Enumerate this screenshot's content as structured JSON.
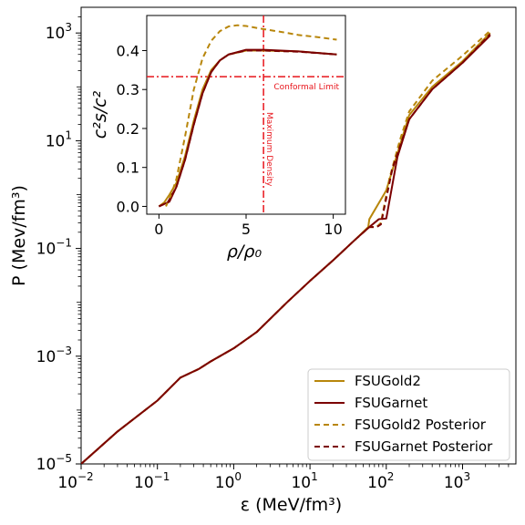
{
  "chart_data": [
    {
      "type": "line",
      "title": "",
      "xlabel": "ε (MeV/fm³)",
      "ylabel": "P (Mev/fm³)",
      "xscale": "log",
      "yscale": "log",
      "xlim": [
        0.01,
        5000
      ],
      "ylim": [
        1e-05,
        3000
      ],
      "x_ticks": [
        {
          "value": 0.01,
          "base": "10",
          "exp": "−2"
        },
        {
          "value": 0.1,
          "base": "10",
          "exp": "−1"
        },
        {
          "value": 1,
          "base": "10",
          "exp": "0"
        },
        {
          "value": 10,
          "base": "10",
          "exp": "1"
        },
        {
          "value": 100,
          "base": "10",
          "exp": "2"
        },
        {
          "value": 1000,
          "base": "10",
          "exp": "3"
        }
      ],
      "y_ticks": [
        {
          "value": 1e-05,
          "base": "10",
          "exp": "−5"
        },
        {
          "value": 0.001,
          "base": "10",
          "exp": "−3"
        },
        {
          "value": 0.1,
          "base": "10",
          "exp": "−1"
        },
        {
          "value": 10,
          "base": "10",
          "exp": "1"
        },
        {
          "value": 1000,
          "base": "10",
          "exp": "3"
        }
      ],
      "legend_position": "lower-right",
      "series": [
        {
          "name": "FSUGold2",
          "color": "#b8860b",
          "style": "solid",
          "points": [
            [
              0.01,
              1e-05
            ],
            [
              0.03,
              4e-05
            ],
            [
              0.1,
              0.00015
            ],
            [
              0.2,
              0.0004
            ],
            [
              0.35,
              0.00058
            ],
            [
              0.5,
              0.0008
            ],
            [
              1,
              0.0014
            ],
            [
              2,
              0.0028
            ],
            [
              5,
              0.01
            ],
            [
              10,
              0.025
            ],
            [
              20,
              0.06
            ],
            [
              40,
              0.15
            ],
            [
              58,
              0.25
            ],
            [
              60,
              0.35
            ],
            [
              100,
              1.2
            ],
            [
              150,
              8
            ],
            [
              200,
              30
            ],
            [
              400,
              100
            ],
            [
              1000,
              300
            ],
            [
              2300,
              1000
            ]
          ]
        },
        {
          "name": "FSUGarnet",
          "color": "#7b0000",
          "style": "solid",
          "points": [
            [
              0.01,
              1e-05
            ],
            [
              0.03,
              4e-05
            ],
            [
              0.1,
              0.00015
            ],
            [
              0.2,
              0.0004
            ],
            [
              0.35,
              0.00058
            ],
            [
              0.5,
              0.0008
            ],
            [
              1,
              0.0014
            ],
            [
              2,
              0.0028
            ],
            [
              5,
              0.01
            ],
            [
              10,
              0.025
            ],
            [
              20,
              0.06
            ],
            [
              40,
              0.15
            ],
            [
              60,
              0.25
            ],
            [
              80,
              0.35
            ],
            [
              100,
              0.36
            ],
            [
              140,
              5
            ],
            [
              200,
              25
            ],
            [
              400,
              90
            ],
            [
              1000,
              280
            ],
            [
              2300,
              900
            ]
          ]
        },
        {
          "name": "FSUGold2 Posterior",
          "color": "#b8860b",
          "style": "dashed",
          "points": [
            [
              0.01,
              1e-05
            ],
            [
              0.03,
              4e-05
            ],
            [
              0.1,
              0.00015
            ],
            [
              0.2,
              0.0004
            ],
            [
              0.35,
              0.00058
            ],
            [
              0.5,
              0.0008
            ],
            [
              1,
              0.0014
            ],
            [
              2,
              0.0028
            ],
            [
              5,
              0.01
            ],
            [
              10,
              0.025
            ],
            [
              20,
              0.06
            ],
            [
              40,
              0.15
            ],
            [
              60,
              0.25
            ],
            [
              75,
              0.25
            ],
            [
              85,
              0.3
            ],
            [
              110,
              2
            ],
            [
              150,
              10
            ],
            [
              200,
              35
            ],
            [
              400,
              130
            ],
            [
              1000,
              380
            ],
            [
              2300,
              1100
            ]
          ]
        },
        {
          "name": "FSUGarnet Posterior",
          "color": "#7b0000",
          "style": "dashed",
          "points": [
            [
              0.01,
              1e-05
            ],
            [
              0.03,
              4e-05
            ],
            [
              0.1,
              0.00015
            ],
            [
              0.2,
              0.0004
            ],
            [
              0.35,
              0.00058
            ],
            [
              0.5,
              0.0008
            ],
            [
              1,
              0.0014
            ],
            [
              2,
              0.0028
            ],
            [
              5,
              0.01
            ],
            [
              10,
              0.025
            ],
            [
              20,
              0.06
            ],
            [
              40,
              0.15
            ],
            [
              60,
              0.25
            ],
            [
              75,
              0.25
            ],
            [
              85,
              0.28
            ],
            [
              120,
              3
            ],
            [
              200,
              25
            ],
            [
              400,
              90
            ],
            [
              1000,
              280
            ],
            [
              2300,
              950
            ]
          ]
        }
      ]
    },
    {
      "type": "line",
      "title": "",
      "xlabel": "ρ/ρ₀",
      "ylabel": "c²s/c²",
      "xlim": [
        -0.7,
        10.7
      ],
      "ylim": [
        -0.02,
        0.49
      ],
      "x_ticks": [
        "0",
        "5",
        "10"
      ],
      "x_tick_values": [
        0,
        5,
        10
      ],
      "y_ticks": [
        "0.0",
        "0.1",
        "0.2",
        "0.3",
        "0.4"
      ],
      "y_tick_values": [
        0,
        0.1,
        0.2,
        0.3,
        0.4
      ],
      "reference_lines": [
        {
          "orientation": "horizontal",
          "value": 0.333,
          "label": "Conformal Limit"
        },
        {
          "orientation": "vertical",
          "value": 6.0,
          "label": "Maximum Density"
        }
      ],
      "series": [
        {
          "name": "FSUGold2",
          "color": "#b8860b",
          "style": "solid",
          "points": [
            [
              0,
              0
            ],
            [
              0.3,
              0.01
            ],
            [
              0.6,
              0.03
            ],
            [
              1,
              0.06
            ],
            [
              1.5,
              0.13
            ],
            [
              2,
              0.22
            ],
            [
              2.5,
              0.3
            ],
            [
              3,
              0.35
            ],
            [
              3.5,
              0.375
            ],
            [
              4,
              0.39
            ],
            [
              5,
              0.4
            ],
            [
              6,
              0.4
            ],
            [
              8,
              0.398
            ],
            [
              10.2,
              0.39
            ]
          ]
        },
        {
          "name": "FSUGarnet",
          "color": "#7b0000",
          "style": "solid",
          "points": [
            [
              0,
              0
            ],
            [
              0.3,
              0.006
            ],
            [
              0.6,
              0.012
            ],
            [
              1,
              0.05
            ],
            [
              1.5,
              0.12
            ],
            [
              2,
              0.21
            ],
            [
              2.5,
              0.29
            ],
            [
              3,
              0.345
            ],
            [
              3.5,
              0.375
            ],
            [
              4,
              0.39
            ],
            [
              5,
              0.402
            ],
            [
              6,
              0.402
            ],
            [
              8,
              0.398
            ],
            [
              10.2,
              0.39
            ]
          ]
        },
        {
          "name": "FSUGold2 Posterior",
          "color": "#b8860b",
          "style": "dashed",
          "points": [
            [
              0.4,
              0
            ],
            [
              0.7,
              0.03
            ],
            [
              1,
              0.07
            ],
            [
              1.5,
              0.18
            ],
            [
              2,
              0.3
            ],
            [
              2.5,
              0.38
            ],
            [
              3,
              0.425
            ],
            [
              3.5,
              0.45
            ],
            [
              4,
              0.462
            ],
            [
              4.5,
              0.465
            ],
            [
              5,
              0.463
            ],
            [
              6,
              0.455
            ],
            [
              7,
              0.448
            ],
            [
              8,
              0.44
            ],
            [
              9,
              0.435
            ],
            [
              10.2,
              0.428
            ]
          ]
        },
        {
          "name": "FSUGarnet Posterior",
          "color": "#7b0000",
          "style": "dashed",
          "points": [
            [
              0,
              0
            ],
            [
              0.5,
              0.01
            ],
            [
              1,
              0.05
            ],
            [
              1.5,
              0.12
            ],
            [
              2,
              0.21
            ],
            [
              2.5,
              0.29
            ],
            [
              3,
              0.345
            ],
            [
              3.5,
              0.375
            ],
            [
              4,
              0.39
            ],
            [
              5,
              0.4
            ],
            [
              6,
              0.4
            ],
            [
              8,
              0.397
            ],
            [
              10.2,
              0.39
            ]
          ]
        }
      ]
    }
  ]
}
